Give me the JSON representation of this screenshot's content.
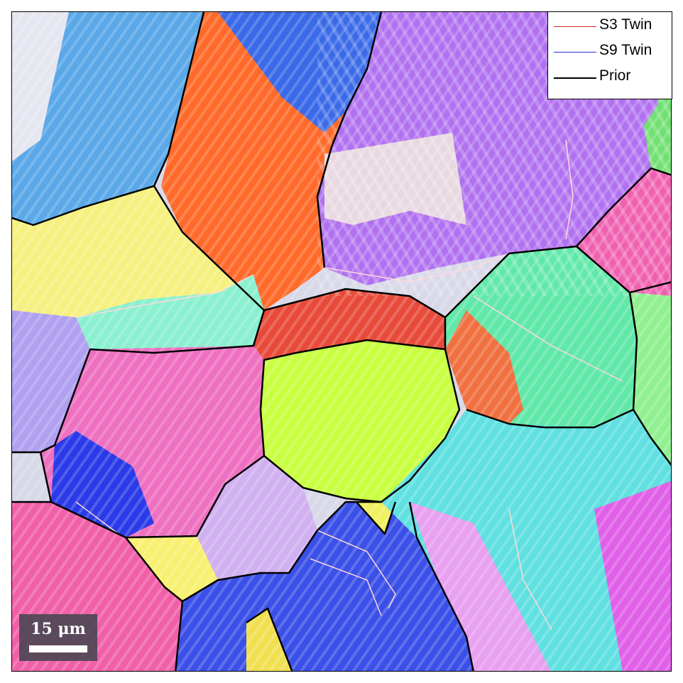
{
  "legend": {
    "items": [
      {
        "label": "S3 Twin",
        "color": "#cc2222"
      },
      {
        "label": "S9 Twin",
        "color": "#2233dd"
      },
      {
        "label": "Prior",
        "color": "#000000"
      }
    ]
  },
  "scale_bar": {
    "label": "15 μm"
  },
  "colors": {
    "grain_boundary": "#000000",
    "twin_boundary": "#ffd0d0"
  }
}
